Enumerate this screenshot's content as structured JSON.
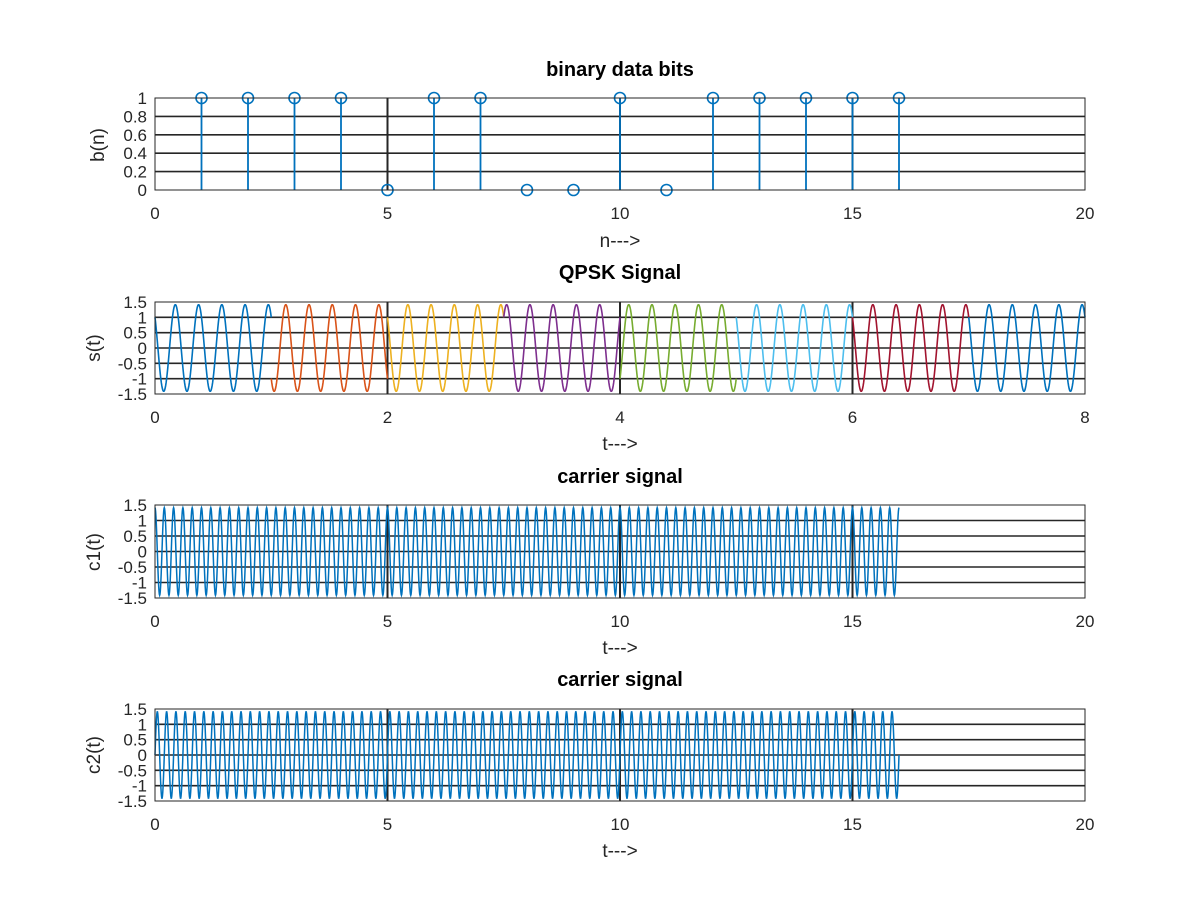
{
  "chart_data": [
    {
      "type": "stem",
      "title": "binary data bits",
      "xlabel": "n--->",
      "ylabel": "b(n)",
      "xlim": [
        0,
        20
      ],
      "ylim": [
        0,
        1
      ],
      "xticks": [
        "0",
        "5",
        "10",
        "15",
        "20"
      ],
      "yticks": [
        "0",
        "0.2",
        "0.4",
        "0.6",
        "0.8",
        "1"
      ],
      "grid": true,
      "series": [
        {
          "color": "#0072bd",
          "x": [
            1,
            2,
            3,
            4,
            5,
            6,
            7,
            8,
            9,
            10,
            11,
            12,
            13,
            14,
            15,
            16
          ],
          "values": [
            1,
            1,
            1,
            1,
            0,
            1,
            1,
            0,
            0,
            1,
            0,
            1,
            1,
            1,
            1,
            1
          ]
        }
      ]
    },
    {
      "type": "line",
      "title": "QPSK Signal",
      "xlabel": "t--->",
      "ylabel": "s(t)",
      "xlim": [
        0,
        8
      ],
      "ylim": [
        -1.5,
        1.5
      ],
      "xticks": [
        "0",
        "2",
        "4",
        "6",
        "8"
      ],
      "yticks": [
        "-1.5",
        "-1",
        "-0.5",
        "0",
        "0.5",
        "1",
        "1.5"
      ],
      "grid": true,
      "waveform": "sinusoid, amplitude 1.414, 5 cycles per unit time, one colored segment per symbol",
      "segments": [
        {
          "t": [
            0,
            1
          ],
          "phase": 45,
          "color": "#0072bd"
        },
        {
          "t": [
            1,
            2
          ],
          "phase": 135,
          "color": "#d95319"
        },
        {
          "t": [
            2,
            3
          ],
          "phase": 45,
          "color": "#edb120"
        },
        {
          "t": [
            3,
            4
          ],
          "phase": 315,
          "color": "#7e2f8e"
        },
        {
          "t": [
            4,
            5
          ],
          "phase": 225,
          "color": "#77ac30"
        },
        {
          "t": [
            5,
            6
          ],
          "phase": 45,
          "color": "#4dbeee"
        },
        {
          "t": [
            6,
            7
          ],
          "phase": 45,
          "color": "#a2142f"
        },
        {
          "t": [
            7,
            8
          ],
          "phase": 45,
          "color": "#0072bd"
        }
      ]
    },
    {
      "type": "line",
      "title": "carrier signal",
      "xlabel": "t--->",
      "ylabel": "c1(t)",
      "xlim": [
        0,
        20
      ],
      "ylim": [
        -1.5,
        1.5
      ],
      "xticks": [
        "0",
        "5",
        "10",
        "15",
        "20"
      ],
      "yticks": [
        "-1.5",
        "-1",
        "-0.5",
        "0",
        "0.5",
        "1",
        "1.5"
      ],
      "grid": true,
      "series": [
        {
          "color": "#0072bd",
          "function": "1.414*cos(2*pi*5*t)",
          "t_range": [
            0,
            16
          ]
        }
      ]
    },
    {
      "type": "line",
      "title": "carrier signal",
      "xlabel": "t--->",
      "ylabel": "c2(t)",
      "xlim": [
        0,
        20
      ],
      "ylim": [
        -1.5,
        1.5
      ],
      "xticks": [
        "0",
        "5",
        "10",
        "15",
        "20"
      ],
      "yticks": [
        "-1.5",
        "-1",
        "-0.5",
        "0",
        "0.5",
        "1",
        "1.5"
      ],
      "grid": true,
      "series": [
        {
          "color": "#0072bd",
          "function": "1.414*sin(2*pi*5*t)",
          "t_range": [
            0,
            16
          ]
        }
      ]
    }
  ]
}
